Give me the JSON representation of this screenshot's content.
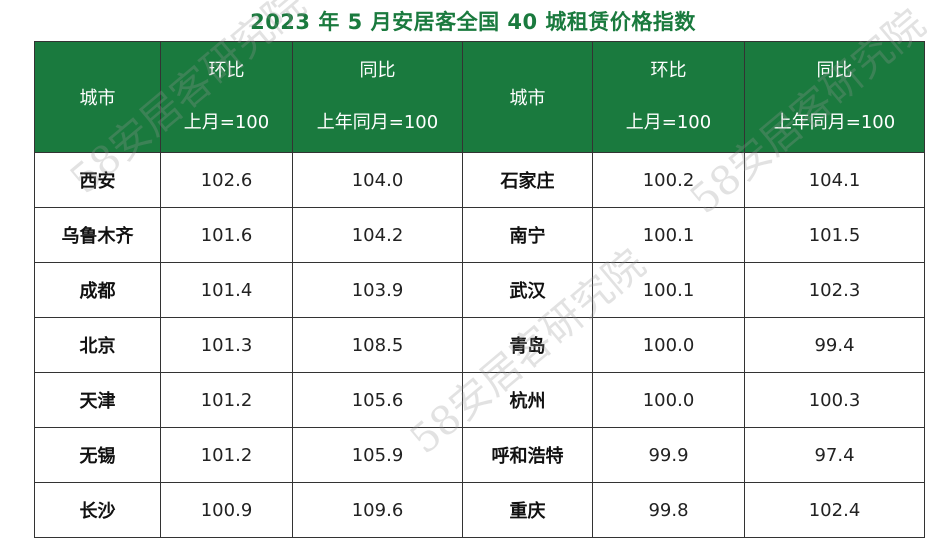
{
  "title": "2023 年 5 月安居客全国 40 城租赁价格指数",
  "headers": {
    "city": "城市",
    "mom": "环比",
    "mom_base": "上月=100",
    "yoy": "同比",
    "yoy_base": "上年同月=100"
  },
  "rows": [
    {
      "c1": "西安",
      "m1": "102.6",
      "y1": "104.0",
      "c2": "石家庄",
      "m2": "100.2",
      "y2": "104.1"
    },
    {
      "c1": "乌鲁木齐",
      "m1": "101.6",
      "y1": "104.2",
      "c2": "南宁",
      "m2": "100.1",
      "y2": "101.5"
    },
    {
      "c1": "成都",
      "m1": "101.4",
      "y1": "103.9",
      "c2": "武汉",
      "m2": "100.1",
      "y2": "102.3"
    },
    {
      "c1": "北京",
      "m1": "101.3",
      "y1": "108.5",
      "c2": "青岛",
      "m2": "100.0",
      "y2": "99.4"
    },
    {
      "c1": "天津",
      "m1": "101.2",
      "y1": "105.6",
      "c2": "杭州",
      "m2": "100.0",
      "y2": "100.3"
    },
    {
      "c1": "无锡",
      "m1": "101.2",
      "y1": "105.9",
      "c2": "呼和浩特",
      "m2": "99.9",
      "y2": "97.4"
    },
    {
      "c1": "长沙",
      "m1": "100.9",
      "y1": "109.6",
      "c2": "重庆",
      "m2": "99.8",
      "y2": "102.4"
    }
  ],
  "watermark": "58安居客研究院",
  "colors": {
    "header_bg": "#1a7a3e",
    "title": "#1a7a3e"
  }
}
